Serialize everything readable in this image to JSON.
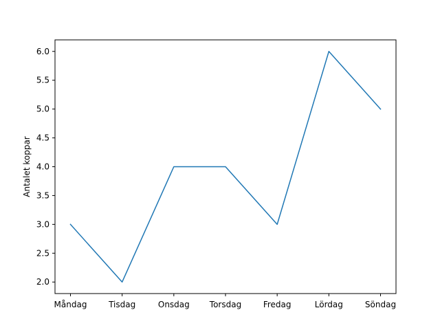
{
  "chart_data": {
    "type": "line",
    "title": "",
    "xlabel": "",
    "ylabel": "Antalet koppar",
    "categories": [
      "Måndag",
      "Tisdag",
      "Onsdag",
      "Torsdag",
      "Fredag",
      "Lördag",
      "Söndag"
    ],
    "series": [
      {
        "values": [
          3,
          2,
          4,
          4,
          3,
          6,
          5
        ],
        "color": "#1f77b4"
      }
    ],
    "ylim": [
      1.8,
      6.2
    ],
    "yticks": [
      "2.0",
      "2.5",
      "3.0",
      "3.5",
      "4.0",
      "4.5",
      "5.0",
      "5.5",
      "6.0"
    ],
    "grid": false,
    "legend": "none"
  }
}
